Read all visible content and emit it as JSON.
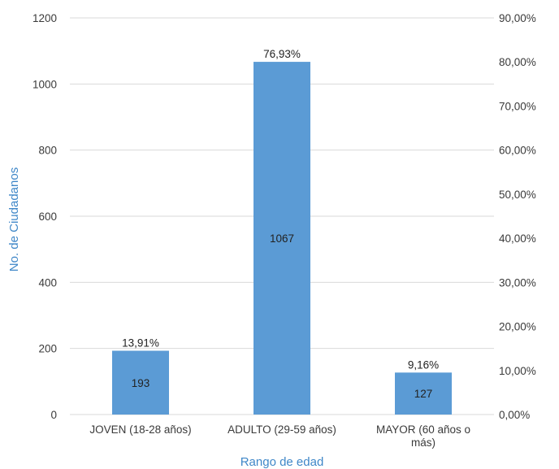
{
  "chart_data": {
    "type": "bar",
    "title": "",
    "xlabel": "Rango de edad",
    "ylabel": "No. de Ciudadanos",
    "categories": [
      [
        "JOVEN (18-28 años)"
      ],
      [
        "ADULTO (29-59 años)"
      ],
      [
        "MAYOR (60 años o",
        "más)"
      ]
    ],
    "values": [
      193,
      1067,
      127
    ],
    "percent_labels": [
      "13,91%",
      "76,93%",
      "9,16%"
    ],
    "ylim": [
      0,
      1200
    ],
    "yticks": [
      "0",
      "200",
      "400",
      "600",
      "800",
      "1000",
      "1200"
    ],
    "y2lim": [
      0,
      90
    ],
    "y2ticks": [
      "0,00%",
      "10,00%",
      "20,00%",
      "30,00%",
      "40,00%",
      "50,00%",
      "60,00%",
      "70,00%",
      "80,00%",
      "90,00%"
    ],
    "grid": true,
    "colors": {
      "bar": "#5b9bd5",
      "axis_title": "#3f87c8",
      "grid": "#d9d9d9"
    }
  }
}
